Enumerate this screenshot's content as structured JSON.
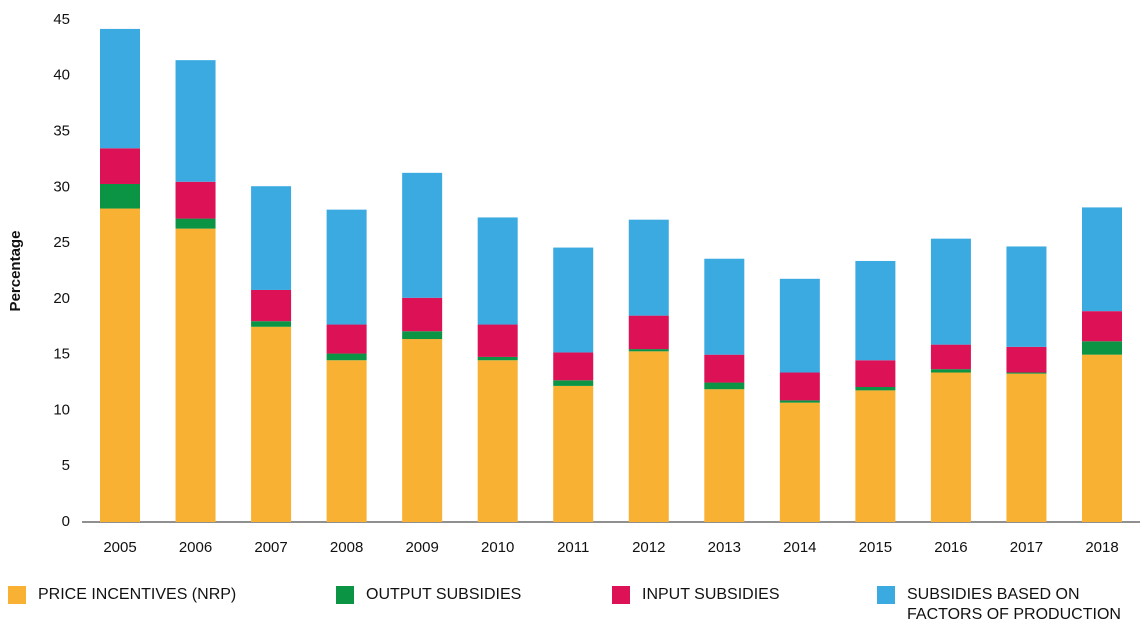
{
  "chart_data": {
    "type": "stacked_bar",
    "y_label": "Percentage",
    "categories": [
      "2005",
      "2006",
      "2007",
      "2008",
      "2009",
      "2010",
      "2011",
      "2012",
      "2013",
      "2014",
      "2015",
      "2016",
      "2017",
      "2018"
    ],
    "series": [
      {
        "name": "PRICE INCENTIVES (NRP)",
        "color": "#f8b133",
        "values": [
          28.1,
          26.3,
          17.5,
          14.5,
          16.4,
          14.5,
          12.2,
          15.3,
          11.9,
          10.7,
          11.8,
          13.4,
          13.3,
          15.0
        ]
      },
      {
        "name": "OUTPUT SUBSIDIES",
        "color": "#0b9444",
        "values": [
          2.2,
          0.9,
          0.5,
          0.6,
          0.7,
          0.3,
          0.5,
          0.2,
          0.6,
          0.2,
          0.3,
          0.3,
          0.1,
          1.2
        ]
      },
      {
        "name": "INPUT SUBSIDIES",
        "color": "#dd1155",
        "values": [
          3.2,
          3.3,
          2.8,
          2.6,
          3.0,
          2.9,
          2.5,
          3.0,
          2.5,
          2.5,
          2.4,
          2.2,
          2.3,
          2.7
        ]
      },
      {
        "name": "SUBSIDIES BASED ON FACTORS OF PRODUCTION",
        "color": "#3aaae1",
        "values": [
          10.7,
          10.9,
          9.3,
          10.3,
          11.2,
          9.6,
          9.4,
          8.6,
          8.6,
          8.4,
          8.9,
          9.5,
          9.0,
          9.3
        ]
      }
    ],
    "ylim": [
      0,
      45
    ],
    "yticks": [
      0,
      5,
      10,
      15,
      20,
      25,
      30,
      35,
      40,
      45
    ],
    "grid": false
  }
}
